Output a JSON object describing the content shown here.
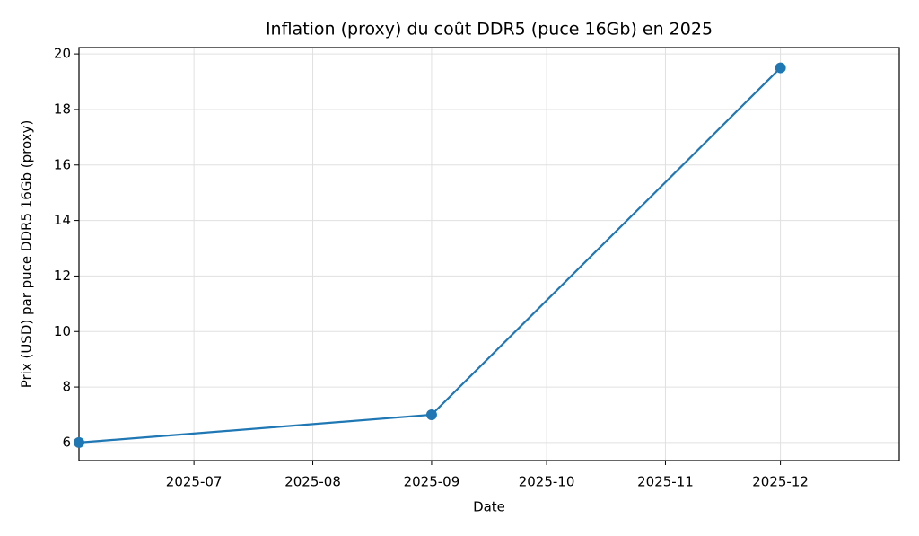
{
  "chart_data": {
    "type": "line",
    "title": "Inflation (proxy) du coût DDR5 (puce 16Gb) en 2025",
    "x_label": "Date",
    "y_label": "Prix (USD) par puce DDR5 16Gb (proxy)",
    "x": [
      "2025-06",
      "2025-09",
      "2025-12"
    ],
    "series": [
      {
        "name": "DDR5 16Gb",
        "color": "#1f77b4",
        "values": [
          6,
          7,
          19.5
        ]
      }
    ],
    "xlim": [
      "2025-06",
      "2026-01"
    ],
    "xticks": [
      "2025-07",
      "2025-08",
      "2025-09",
      "2025-10",
      "2025-11",
      "2025-12"
    ],
    "ylim": [
      5.35,
      20.23
    ],
    "yticks": [
      6,
      8,
      10,
      12,
      14,
      16,
      18,
      20
    ],
    "grid": true,
    "markers": true
  }
}
